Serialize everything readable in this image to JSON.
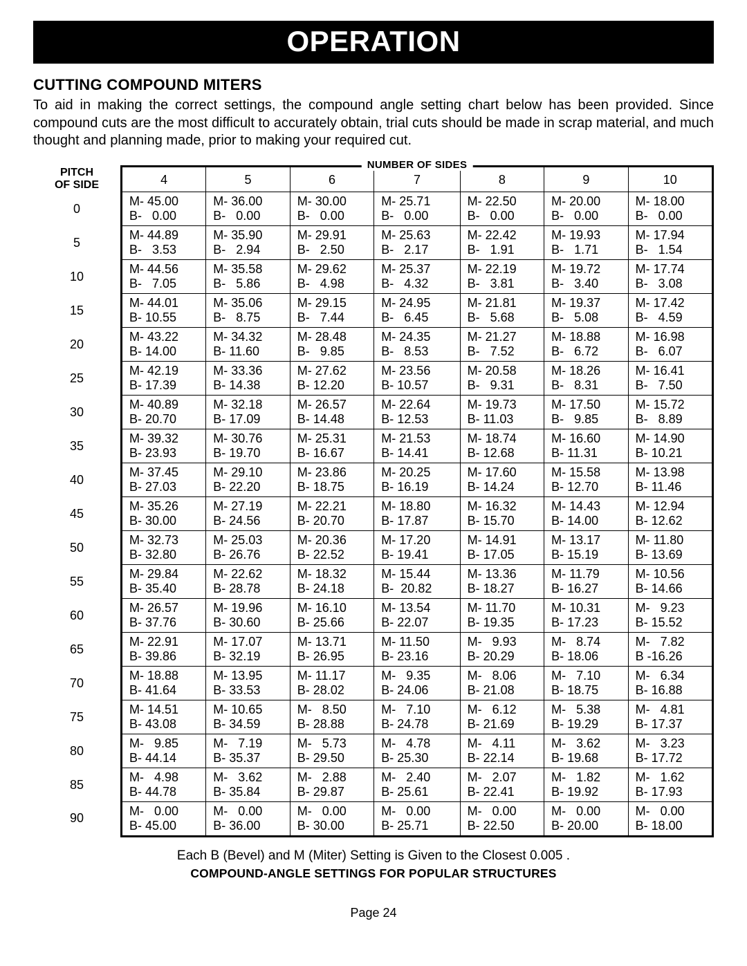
{
  "titleBar": "OPERATION",
  "sectionHeading": "CUTTING COMPOUND MITERS",
  "bodyText": "To aid in making the correct settings, the compound angle setting chart below has been provided. Since compound cuts are the most difficult to accurately obtain, trial cuts should be made in scrap material, and much thought and planning made, prior to making your required cut.",
  "pitchHeader1": "PITCH",
  "pitchHeader2": "OF SIDE",
  "sidesLegend": "NUMBER OF SIDES",
  "sidesColumns": [
    "4",
    "5",
    "6",
    "7",
    "8",
    "9",
    "10"
  ],
  "pitchValues": [
    "0",
    "5",
    "10",
    "15",
    "20",
    "25",
    "30",
    "35",
    "40",
    "45",
    "50",
    "55",
    "60",
    "65",
    "70",
    "75",
    "80",
    "85",
    "90"
  ],
  "rows": [
    [
      [
        "M- 45.00",
        "B-   0.00"
      ],
      [
        "M- 36.00",
        "B-   0.00"
      ],
      [
        "M- 30.00",
        "B-   0.00"
      ],
      [
        "M- 25.71",
        "B-   0.00"
      ],
      [
        "M- 22.50",
        "B-   0.00"
      ],
      [
        "M- 20.00",
        "B-   0.00"
      ],
      [
        "M- 18.00",
        "B-   0.00"
      ]
    ],
    [
      [
        "M- 44.89",
        "B-   3.53"
      ],
      [
        "M- 35.90",
        "B-   2.94"
      ],
      [
        "M- 29.91",
        "B-   2.50"
      ],
      [
        "M- 25.63",
        "B-   2.17"
      ],
      [
        "M- 22.42",
        "B-   1.91"
      ],
      [
        "M- 19.93",
        "B-   1.71"
      ],
      [
        "M- 17.94",
        "B-   1.54"
      ]
    ],
    [
      [
        "M- 44.56",
        "B-   7.05"
      ],
      [
        "M- 35.58",
        "B-   5.86"
      ],
      [
        "M- 29.62",
        "B-   4.98"
      ],
      [
        "M- 25.37",
        "B-   4.32"
      ],
      [
        "M- 22.19",
        "B-   3.81"
      ],
      [
        "M- 19.72",
        "B-   3.40"
      ],
      [
        "M- 17.74",
        "B-   3.08"
      ]
    ],
    [
      [
        "M- 44.01",
        "B- 10.55"
      ],
      [
        "M- 35.06",
        "B-   8.75"
      ],
      [
        "M- 29.15",
        "B-   7.44"
      ],
      [
        "M- 24.95",
        "B-   6.45"
      ],
      [
        "M- 21.81",
        "B-   5.68"
      ],
      [
        "M- 19.37",
        "B-   5.08"
      ],
      [
        "M- 17.42",
        "B-   4.59"
      ]
    ],
    [
      [
        "M- 43.22",
        "B- 14.00"
      ],
      [
        "M- 34.32",
        "B- 11.60"
      ],
      [
        "M- 28.48",
        "B-   9.85"
      ],
      [
        "M- 24.35",
        "B-   8.53"
      ],
      [
        "M- 21.27",
        "B-   7.52"
      ],
      [
        "M- 18.88",
        "B-   6.72"
      ],
      [
        "M- 16.98",
        "B-   6.07"
      ]
    ],
    [
      [
        "M- 42.19",
        "B- 17.39"
      ],
      [
        "M- 33.36",
        "B- 14.38"
      ],
      [
        "M- 27.62",
        "B- 12.20"
      ],
      [
        "M- 23.56",
        "B- 10.57"
      ],
      [
        "M- 20.58",
        "B-   9.31"
      ],
      [
        "M- 18.26",
        "B-   8.31"
      ],
      [
        "M- 16.41",
        "B-   7.50"
      ]
    ],
    [
      [
        "M- 40.89",
        "B- 20.70"
      ],
      [
        "M- 32.18",
        "B- 17.09"
      ],
      [
        "M- 26.57",
        "B- 14.48"
      ],
      [
        "M- 22.64",
        "B- 12.53"
      ],
      [
        "M- 19.73",
        "B- 11.03"
      ],
      [
        "M- 17.50",
        "B-   9.85"
      ],
      [
        "M- 15.72",
        "B-   8.89"
      ]
    ],
    [
      [
        "M- 39.32",
        "B- 23.93"
      ],
      [
        "M- 30.76",
        "B- 19.70"
      ],
      [
        "M- 25.31",
        "B- 16.67"
      ],
      [
        "M- 21.53",
        "B- 14.41"
      ],
      [
        "M- 18.74",
        "B- 12.68"
      ],
      [
        "M- 16.60",
        "B- 11.31"
      ],
      [
        "M- 14.90",
        "B- 10.21"
      ]
    ],
    [
      [
        "M- 37.45",
        "B- 27.03"
      ],
      [
        "M- 29.10",
        "B- 22.20"
      ],
      [
        "M- 23.86",
        "B- 18.75"
      ],
      [
        "M- 20.25",
        "B- 16.19"
      ],
      [
        "M- 17.60",
        "B- 14.24"
      ],
      [
        "M- 15.58",
        "B- 12.70"
      ],
      [
        "M- 13.98",
        "B- 11.46"
      ]
    ],
    [
      [
        "M- 35.26",
        "B- 30.00"
      ],
      [
        "M- 27.19",
        "B- 24.56"
      ],
      [
        "M- 22.21",
        "B- 20.70"
      ],
      [
        "M- 18.80",
        "B- 17.87"
      ],
      [
        "M- 16.32",
        "B- 15.70"
      ],
      [
        "M- 14.43",
        "B- 14.00"
      ],
      [
        "M- 12.94",
        "B- 12.62"
      ]
    ],
    [
      [
        "M- 32.73",
        "B- 32.80"
      ],
      [
        "M- 25.03",
        "B- 26.76"
      ],
      [
        "M- 20.36",
        "B- 22.52"
      ],
      [
        "M- 17.20",
        "B- 19.41"
      ],
      [
        "M- 14.91",
        "B- 17.05"
      ],
      [
        "M- 13.17",
        "B- 15.19"
      ],
      [
        "M- 11.80",
        "B- 13.69"
      ]
    ],
    [
      [
        "M- 29.84",
        "B- 35.40"
      ],
      [
        "M- 22.62",
        "B- 28.78"
      ],
      [
        "M- 18.32",
        "B- 24.18"
      ],
      [
        "M- 15.44",
        "B-  20.82"
      ],
      [
        "M- 13.36",
        "B- 18.27"
      ],
      [
        "M- 11.79",
        "B- 16.27"
      ],
      [
        "M- 10.56",
        "B- 14.66"
      ]
    ],
    [
      [
        "M- 26.57",
        "B- 37.76"
      ],
      [
        "M- 19.96",
        "B- 30.60"
      ],
      [
        "M- 16.10",
        "B- 25.66"
      ],
      [
        "M- 13.54",
        "B- 22.07"
      ],
      [
        "M- 11.70",
        "B- 19.35"
      ],
      [
        "M- 10.31",
        "B- 17.23"
      ],
      [
        "M-   9.23",
        "B- 15.52"
      ]
    ],
    [
      [
        "M- 22.91",
        "B- 39.86"
      ],
      [
        "M- 17.07",
        "B- 32.19"
      ],
      [
        "M- 13.71",
        "B- 26.95"
      ],
      [
        "M- 11.50",
        "B- 23.16"
      ],
      [
        "M-   9.93",
        "B- 20.29"
      ],
      [
        "M-   8.74",
        "B- 18.06"
      ],
      [
        "M-   7.82",
        "B -16.26"
      ]
    ],
    [
      [
        "M- 18.88",
        "B- 41.64"
      ],
      [
        "M- 13.95",
        "B- 33.53"
      ],
      [
        "M- 11.17",
        "B- 28.02"
      ],
      [
        "M-   9.35",
        "B- 24.06"
      ],
      [
        "M-   8.06",
        "B- 21.08"
      ],
      [
        "M-   7.10",
        "B- 18.75"
      ],
      [
        "M-   6.34",
        "B- 16.88"
      ]
    ],
    [
      [
        "M- 14.51",
        "B- 43.08"
      ],
      [
        "M- 10.65",
        "B- 34.59"
      ],
      [
        "M-   8.50",
        "B- 28.88"
      ],
      [
        "M-   7.10",
        "B- 24.78"
      ],
      [
        "M-   6.12",
        "B- 21.69"
      ],
      [
        "M-   5.38",
        "B- 19.29"
      ],
      [
        "M-   4.81",
        "B- 17.37"
      ]
    ],
    [
      [
        "M-   9.85",
        "B- 44.14"
      ],
      [
        "M-   7.19",
        "B- 35.37"
      ],
      [
        "M-   5.73",
        "B- 29.50"
      ],
      [
        "M-   4.78",
        "B- 25.30"
      ],
      [
        "M-   4.11",
        "B- 22.14"
      ],
      [
        "M-   3.62",
        "B- 19.68"
      ],
      [
        "M-   3.23",
        "B- 17.72"
      ]
    ],
    [
      [
        "M-   4.98",
        "B- 44.78"
      ],
      [
        "M-   3.62",
        "B- 35.84"
      ],
      [
        "M-   2.88",
        "B- 29.87"
      ],
      [
        "M-   2.40",
        "B- 25.61"
      ],
      [
        "M-   2.07",
        "B- 22.41"
      ],
      [
        "M-   1.82",
        "B- 19.92"
      ],
      [
        "M-   1.62",
        "B- 17.93"
      ]
    ],
    [
      [
        "M-   0.00",
        "B- 45.00"
      ],
      [
        "M-   0.00",
        "B- 36.00"
      ],
      [
        "M-   0.00",
        "B- 30.00"
      ],
      [
        "M-   0.00",
        "B- 25.71"
      ],
      [
        "M-   0.00",
        "B- 22.50"
      ],
      [
        "M-   0.00",
        "B- 20.00"
      ],
      [
        "M-   0.00",
        "B- 18.00"
      ]
    ]
  ],
  "caption1": "Each B (Bevel) and M (Miter) Setting is Given to the Closest 0.005  .",
  "caption2": "COMPOUND-ANGLE SETTINGS FOR POPULAR STRUCTURES",
  "pageNum": "Page 24"
}
